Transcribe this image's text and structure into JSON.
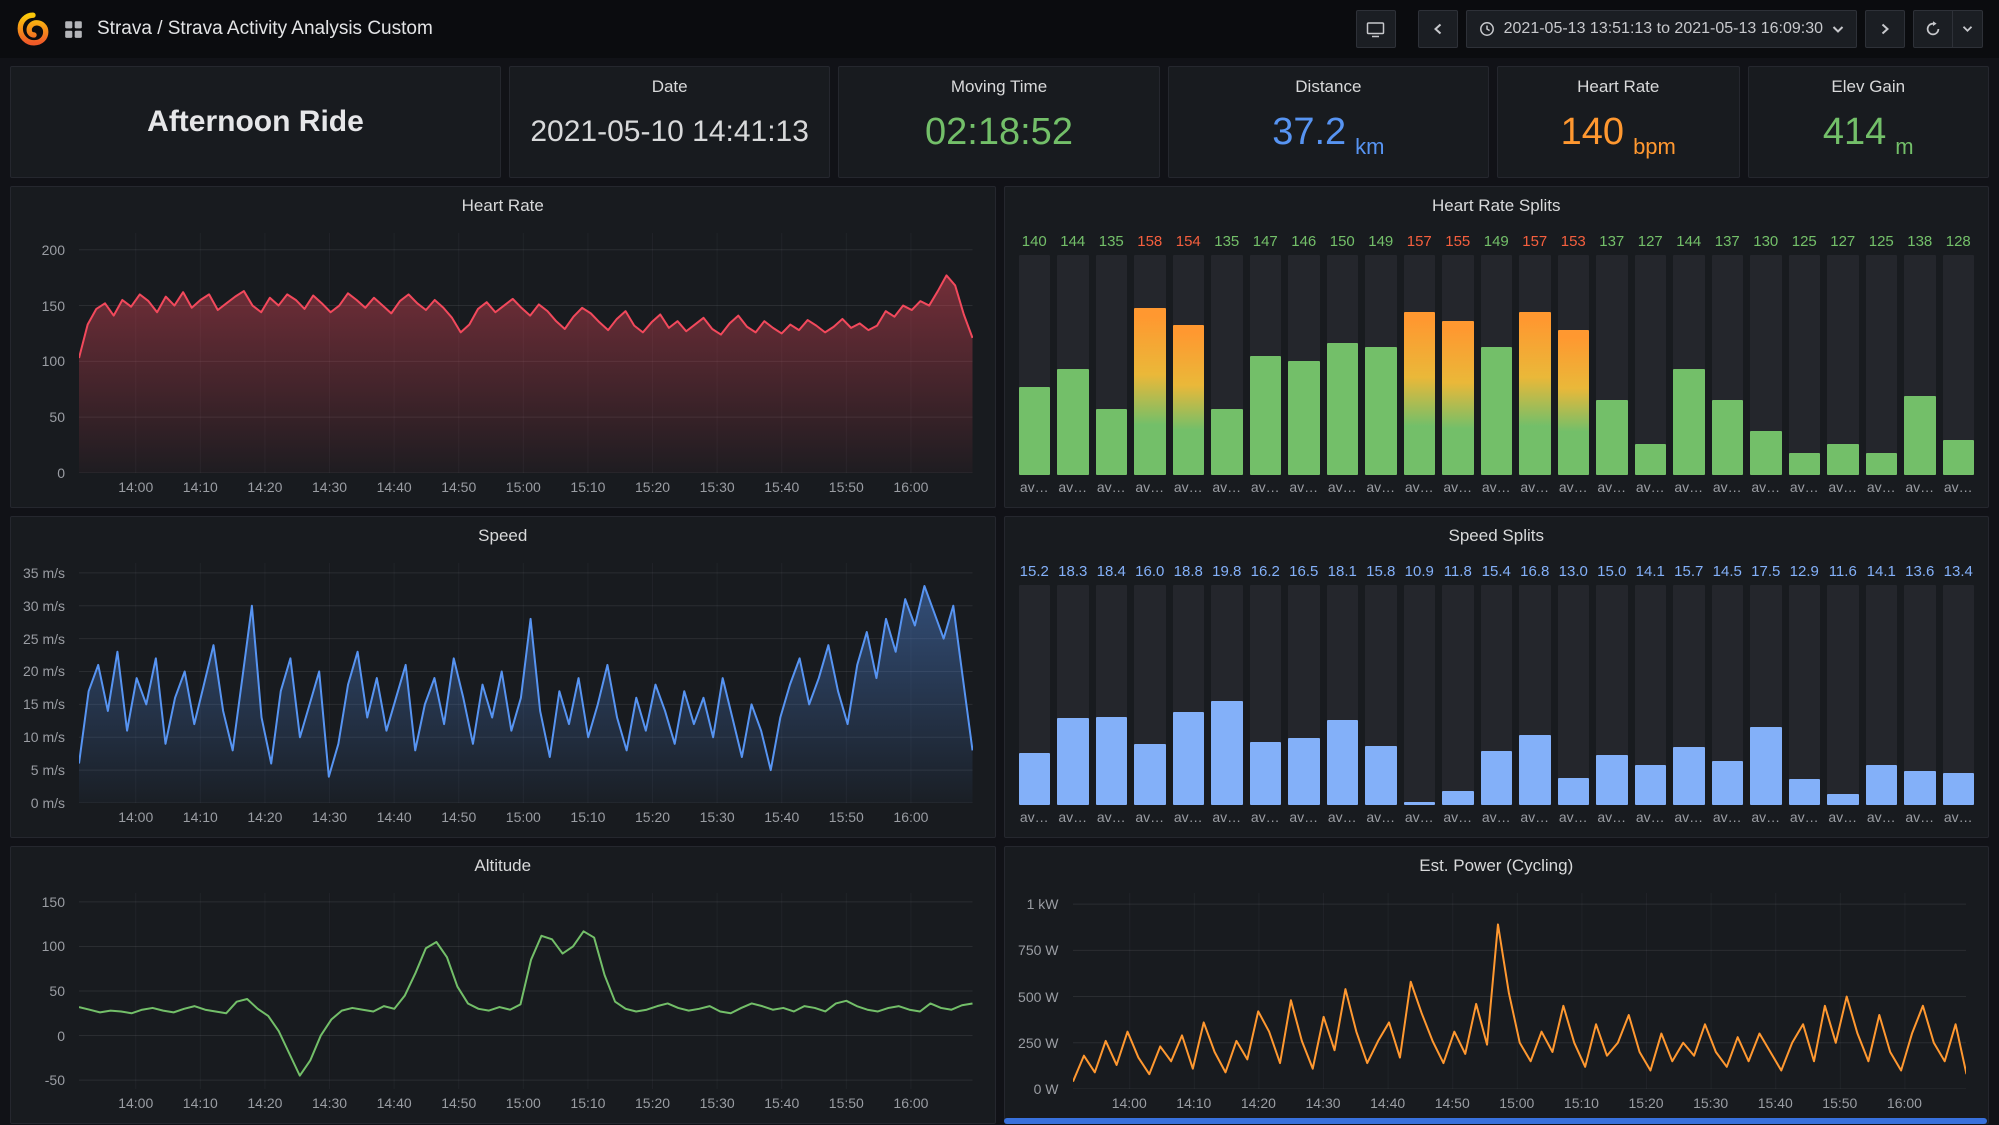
{
  "nav": {
    "breadcrumb": "Strava / Strava Activity Analysis Custom",
    "time_range": "2021-05-13 13:51:13 to 2021-05-13 16:09:30"
  },
  "stats": {
    "name": {
      "value": "Afternoon Ride"
    },
    "date": {
      "title": "Date",
      "value": "2021-05-10 14:41:13",
      "color": "#D8D9DA"
    },
    "moving_time": {
      "title": "Moving Time",
      "value": "02:18:52",
      "color": "#73BF69"
    },
    "distance": {
      "title": "Distance",
      "value": "37.2",
      "unit": "km",
      "color": "#5794F2"
    },
    "heart_rate": {
      "title": "Heart Rate",
      "value": "140",
      "unit": "bpm",
      "color": "#FF9830"
    },
    "elev_gain": {
      "title": "Elev Gain",
      "value": "414",
      "unit": "m",
      "color": "#73BF69"
    }
  },
  "chart_data": [
    {
      "id": "heart_rate",
      "type": "line",
      "title": "Heart Rate",
      "color": "#F2495C",
      "fill": true,
      "y_range": [
        0,
        215
      ],
      "y_ticks": [
        0,
        50,
        100,
        150,
        200
      ],
      "y_tick_labels": [
        "0",
        "50",
        "100",
        "150",
        "200"
      ],
      "x_ticks": [
        "14:00",
        "14:10",
        "14:20",
        "14:30",
        "14:40",
        "14:50",
        "15:00",
        "15:10",
        "15:20",
        "15:30",
        "15:40",
        "15:50",
        "16:00"
      ],
      "values": [
        103,
        133,
        147,
        152,
        141,
        155,
        149,
        160,
        154,
        144,
        158,
        150,
        162,
        148,
        155,
        160,
        146,
        152,
        158,
        163,
        150,
        144,
        157,
        150,
        160,
        155,
        147,
        159,
        152,
        144,
        150,
        161,
        155,
        148,
        157,
        150,
        143,
        154,
        160,
        152,
        146,
        155,
        148,
        139,
        126,
        133,
        147,
        153,
        144,
        150,
        156,
        148,
        141,
        151,
        145,
        136,
        129,
        140,
        148,
        143,
        135,
        128,
        138,
        145,
        132,
        126,
        135,
        142,
        130,
        136,
        127,
        133,
        139,
        129,
        124,
        134,
        141,
        131,
        126,
        136,
        130,
        125,
        133,
        128,
        137,
        132,
        126,
        131,
        138,
        130,
        134,
        128,
        132,
        145,
        140,
        150,
        146,
        154,
        150,
        163,
        177,
        168,
        142,
        121
      ]
    },
    {
      "id": "heart_rate_splits",
      "type": "bar",
      "title": "Heart Rate Splits",
      "bar_label": "av…",
      "decimals": 0,
      "threshold": 153,
      "color_low": "#73BF69",
      "color_mid": "#EAB839",
      "color_high": "#FF9830",
      "color_value_low": "#73BF69",
      "color_value_high": "#F55F3E",
      "y_range": [
        120,
        170
      ],
      "values": [
        140,
        144,
        135,
        158,
        154,
        135,
        147,
        146,
        150,
        149,
        157,
        155,
        149,
        157,
        153,
        137,
        127,
        144,
        137,
        130,
        125,
        127,
        125,
        138,
        128
      ]
    },
    {
      "id": "speed",
      "type": "line",
      "title": "Speed",
      "color": "#5794F2",
      "fill": true,
      "y_range": [
        0,
        36.5
      ],
      "y_ticks": [
        0,
        5,
        10,
        15,
        20,
        25,
        30,
        35
      ],
      "y_tick_labels": [
        "0 m/s",
        "5 m/s",
        "10 m/s",
        "15 m/s",
        "20 m/s",
        "25 m/s",
        "30 m/s",
        "35 m/s"
      ],
      "x_ticks": [
        "14:00",
        "14:10",
        "14:20",
        "14:30",
        "14:40",
        "14:50",
        "15:00",
        "15:10",
        "15:20",
        "15:30",
        "15:40",
        "15:50",
        "16:00"
      ],
      "values": [
        6,
        17,
        21,
        14,
        23,
        11,
        19,
        15,
        22,
        9,
        16,
        20,
        12,
        18,
        24,
        14,
        8,
        19,
        30,
        13,
        6,
        17,
        22,
        10,
        15,
        20,
        4,
        9,
        18,
        23,
        13,
        19,
        11,
        16,
        21,
        8,
        15,
        19,
        12,
        22,
        16,
        9,
        18,
        13,
        20,
        11,
        16,
        28,
        14,
        7,
        17,
        12,
        19,
        10,
        15,
        21,
        13,
        8,
        16,
        11,
        18,
        14,
        9,
        17,
        12,
        16,
        10,
        19,
        13,
        7,
        15,
        11,
        5,
        13,
        18,
        22,
        15,
        19,
        24,
        17,
        12,
        21,
        26,
        19,
        28,
        23,
        31,
        27,
        33,
        29,
        25,
        30,
        19,
        8
      ]
    },
    {
      "id": "speed_splits",
      "type": "bar",
      "title": "Speed Splits",
      "bar_label": "av…",
      "decimals": 1,
      "threshold": null,
      "color_low": "#83B0F9",
      "color_mid": "#83B0F9",
      "color_high": "#83B0F9",
      "color_value_low": "#83B0F9",
      "color_value_high": "#83B0F9",
      "y_range": [
        10.6,
        30
      ],
      "values": [
        15.2,
        18.3,
        18.4,
        16.0,
        18.8,
        19.8,
        16.2,
        16.5,
        18.1,
        15.8,
        10.9,
        11.8,
        15.4,
        16.8,
        13.0,
        15.0,
        14.1,
        15.7,
        14.5,
        17.5,
        12.9,
        11.6,
        14.1,
        13.6,
        13.4
      ]
    },
    {
      "id": "altitude",
      "type": "line",
      "title": "Altitude",
      "color": "#73BF69",
      "fill": false,
      "y_range": [
        -60,
        160
      ],
      "y_ticks": [
        -50,
        0,
        50,
        100,
        150
      ],
      "y_tick_labels": [
        "-50",
        "0",
        "50",
        "100",
        "150"
      ],
      "x_ticks": [
        "14:00",
        "14:10",
        "14:20",
        "14:30",
        "14:40",
        "14:50",
        "15:00",
        "15:10",
        "15:20",
        "15:30",
        "15:40",
        "15:50",
        "16:00"
      ],
      "values": [
        32,
        29,
        26,
        28,
        27,
        25,
        29,
        31,
        28,
        26,
        30,
        33,
        29,
        27,
        25,
        38,
        41,
        30,
        22,
        5,
        -20,
        -45,
        -28,
        0,
        18,
        28,
        31,
        29,
        27,
        33,
        30,
        45,
        70,
        98,
        105,
        88,
        55,
        36,
        30,
        28,
        32,
        29,
        35,
        85,
        112,
        108,
        92,
        100,
        117,
        110,
        68,
        38,
        30,
        27,
        29,
        33,
        36,
        31,
        28,
        30,
        33,
        27,
        25,
        31,
        36,
        33,
        29,
        31,
        27,
        33,
        31,
        27,
        36,
        39,
        33,
        29,
        27,
        31,
        33,
        29,
        27,
        36,
        31,
        29,
        34,
        36
      ]
    },
    {
      "id": "power",
      "type": "line",
      "title": "Est. Power (Cycling)",
      "color": "#FF9830",
      "fill": false,
      "y_range": [
        0,
        1060
      ],
      "y_ticks": [
        0,
        250,
        500,
        750,
        1000
      ],
      "y_tick_labels": [
        "0 W",
        "250 W",
        "500 W",
        "750 W",
        "1 kW"
      ],
      "x_ticks": [
        "14:00",
        "14:10",
        "14:20",
        "14:30",
        "14:40",
        "14:50",
        "15:00",
        "15:10",
        "15:20",
        "15:30",
        "15:40",
        "15:50",
        "16:00"
      ],
      "values": [
        40,
        180,
        90,
        260,
        130,
        310,
        170,
        80,
        230,
        150,
        290,
        110,
        360,
        200,
        90,
        260,
        160,
        420,
        310,
        140,
        480,
        260,
        110,
        390,
        210,
        540,
        310,
        140,
        260,
        360,
        170,
        580,
        410,
        260,
        140,
        310,
        190,
        460,
        240,
        890,
        520,
        250,
        150,
        310,
        200,
        450,
        250,
        120,
        350,
        180,
        250,
        400,
        200,
        100,
        300,
        150,
        250,
        180,
        350,
        200,
        120,
        280,
        150,
        300,
        200,
        100,
        250,
        350,
        150,
        450,
        250,
        500,
        300,
        150,
        400,
        200,
        100,
        300,
        450,
        250,
        150,
        350,
        80
      ]
    }
  ]
}
